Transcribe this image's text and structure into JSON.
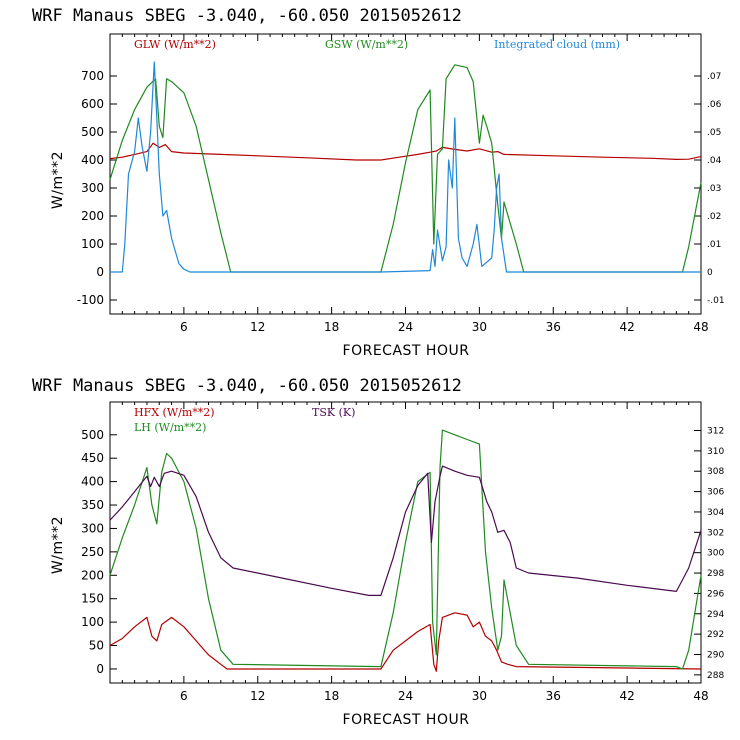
{
  "chart_data": [
    {
      "type": "line",
      "title": "WRF   Manaus SBEG   -3.040, -60.050  2015052612",
      "xlabel": "FORECAST HOUR",
      "ylabel": "W/m**2",
      "xlim": [
        0,
        48
      ],
      "ylim": [
        -150,
        850
      ],
      "xticks": [
        "6",
        "12",
        "18",
        "24",
        "30",
        "36",
        "42",
        "48"
      ],
      "yticks": [
        "-100",
        "0",
        "100",
        "200",
        "300",
        "400",
        "500",
        "600",
        "700"
      ],
      "y2lim": [
        -0.015,
        0.085
      ],
      "y2ticks": [
        "-.01",
        "0",
        ".01",
        ".02",
        ".03",
        ".04",
        ".05",
        ".06",
        ".07"
      ],
      "colors": {
        "glw": "#b40000",
        "gsw": "#208a20",
        "cloud": "#1f88d8"
      },
      "series": [
        {
          "name": "GLW (W/m**2)",
          "axis": "left",
          "color": "#b40000",
          "points": [
            [
              0,
              405
            ],
            [
              1,
              410
            ],
            [
              2,
              420
            ],
            [
              3,
              430
            ],
            [
              3.5,
              460
            ],
            [
              4,
              445
            ],
            [
              4.5,
              455
            ],
            [
              5,
              430
            ],
            [
              6,
              425
            ],
            [
              9,
              420
            ],
            [
              12,
              415
            ],
            [
              16,
              408
            ],
            [
              20,
              400
            ],
            [
              22,
              400
            ],
            [
              23.5,
              410
            ],
            [
              25,
              420
            ],
            [
              26,
              428
            ],
            [
              26.5,
              432
            ],
            [
              27,
              445
            ],
            [
              28,
              438
            ],
            [
              29,
              432
            ],
            [
              30,
              440
            ],
            [
              31,
              428
            ],
            [
              31.5,
              430
            ],
            [
              32,
              420
            ],
            [
              36,
              415
            ],
            [
              40,
              410
            ],
            [
              44,
              406
            ],
            [
              46,
              402
            ],
            [
              47,
              403
            ],
            [
              48,
              412
            ]
          ]
        },
        {
          "name": "GSW (W/m**2)",
          "axis": "left",
          "color": "#208a20",
          "points": [
            [
              0,
              330
            ],
            [
              1,
              470
            ],
            [
              2,
              580
            ],
            [
              3,
              660
            ],
            [
              3.7,
              690
            ],
            [
              4,
              520
            ],
            [
              4.3,
              480
            ],
            [
              4.6,
              690
            ],
            [
              5,
              680
            ],
            [
              6,
              640
            ],
            [
              7,
              520
            ],
            [
              8,
              330
            ],
            [
              9,
              140
            ],
            [
              9.8,
              0
            ],
            [
              22,
              0
            ],
            [
              23,
              170
            ],
            [
              24,
              390
            ],
            [
              25,
              580
            ],
            [
              26,
              650
            ],
            [
              26.3,
              100
            ],
            [
              26.6,
              420
            ],
            [
              27,
              440
            ],
            [
              27.3,
              690
            ],
            [
              28,
              740
            ],
            [
              29,
              730
            ],
            [
              29.5,
              680
            ],
            [
              30,
              460
            ],
            [
              30.3,
              560
            ],
            [
              30.6,
              520
            ],
            [
              31,
              460
            ],
            [
              31.5,
              240
            ],
            [
              31.8,
              120
            ],
            [
              32,
              250
            ],
            [
              33,
              100
            ],
            [
              33.6,
              0
            ],
            [
              46.5,
              0
            ],
            [
              47,
              90
            ],
            [
              48,
              320
            ]
          ]
        },
        {
          "name": "Integrated cloud (mm)",
          "axis": "right",
          "color": "#1f88d8",
          "points": [
            [
              0,
              0
            ],
            [
              1,
              0
            ],
            [
              1.2,
              0.01
            ],
            [
              1.5,
              0.035
            ],
            [
              2,
              0.043
            ],
            [
              2.3,
              0.055
            ],
            [
              2.6,
              0.045
            ],
            [
              3,
              0.036
            ],
            [
              3.3,
              0.05
            ],
            [
              3.6,
              0.075
            ],
            [
              4,
              0.035
            ],
            [
              4.3,
              0.02
            ],
            [
              4.6,
              0.022
            ],
            [
              5,
              0.012
            ],
            [
              5.6,
              0.003
            ],
            [
              6,
              0.001
            ],
            [
              6.5,
              0
            ],
            [
              22,
              0
            ],
            [
              26,
              0.0005
            ],
            [
              26.2,
              0.008
            ],
            [
              26.4,
              0.002
            ],
            [
              26.6,
              0.015
            ],
            [
              27,
              0.004
            ],
            [
              27.3,
              0.009
            ],
            [
              27.5,
              0.04
            ],
            [
              27.8,
              0.03
            ],
            [
              28,
              0.055
            ],
            [
              28.3,
              0.012
            ],
            [
              28.6,
              0.005
            ],
            [
              29,
              0.002
            ],
            [
              29.5,
              0.01
            ],
            [
              29.8,
              0.017
            ],
            [
              30.2,
              0.002
            ],
            [
              31,
              0.005
            ],
            [
              31.2,
              0.015
            ],
            [
              31.4,
              0.03
            ],
            [
              31.6,
              0.035
            ],
            [
              31.8,
              0.012
            ],
            [
              32.2,
              0
            ],
            [
              48,
              0
            ]
          ]
        }
      ]
    },
    {
      "type": "line",
      "title": "WRF   Manaus SBEG   -3.040, -60.050  2015052612",
      "xlabel": "FORECAST HOUR",
      "ylabel": "W/m**2",
      "xlim": [
        0,
        48
      ],
      "ylim": [
        -30,
        570
      ],
      "xticks": [
        "6",
        "12",
        "18",
        "24",
        "30",
        "36",
        "42",
        "48"
      ],
      "yticks": [
        "0",
        "50",
        "100",
        "150",
        "200",
        "250",
        "300",
        "350",
        "400",
        "450",
        "500"
      ],
      "y2lim": [
        287.2,
        314.8
      ],
      "y2ticks": [
        "288",
        "290",
        "292",
        "294",
        "296",
        "298",
        "300",
        "302",
        "304",
        "306",
        "308",
        "310",
        "312"
      ],
      "colors": {
        "hfx": "#b40000",
        "lh": "#208a20",
        "tsk": "#4a0a50"
      },
      "series": [
        {
          "name": "HFX (W/m**2)",
          "axis": "left",
          "color": "#b40000",
          "points": [
            [
              0,
              50
            ],
            [
              1,
              65
            ],
            [
              2,
              90
            ],
            [
              3,
              110
            ],
            [
              3.4,
              70
            ],
            [
              3.8,
              60
            ],
            [
              4.2,
              95
            ],
            [
              5,
              110
            ],
            [
              6,
              90
            ],
            [
              7,
              60
            ],
            [
              8,
              30
            ],
            [
              9,
              10
            ],
            [
              9.5,
              0
            ],
            [
              22,
              0
            ],
            [
              23,
              40
            ],
            [
              24,
              60
            ],
            [
              25,
              80
            ],
            [
              26,
              95
            ],
            [
              26.3,
              10
            ],
            [
              26.5,
              -5
            ],
            [
              26.7,
              60
            ],
            [
              27,
              110
            ],
            [
              28,
              120
            ],
            [
              29,
              115
            ],
            [
              29.5,
              90
            ],
            [
              30,
              100
            ],
            [
              30.5,
              70
            ],
            [
              31,
              60
            ],
            [
              31.4,
              40
            ],
            [
              31.8,
              15
            ],
            [
              32.3,
              10
            ],
            [
              33,
              5
            ],
            [
              48,
              0
            ]
          ]
        },
        {
          "name": "LH (W/m**2)",
          "axis": "left",
          "color": "#208a20",
          "points": [
            [
              0,
              200
            ],
            [
              1,
              280
            ],
            [
              2,
              350
            ],
            [
              3,
              430
            ],
            [
              3.4,
              350
            ],
            [
              3.8,
              310
            ],
            [
              4.2,
              420
            ],
            [
              4.6,
              460
            ],
            [
              5,
              450
            ],
            [
              6,
              400
            ],
            [
              7,
              300
            ],
            [
              8,
              150
            ],
            [
              9,
              40
            ],
            [
              10,
              10
            ],
            [
              22,
              5
            ],
            [
              23,
              120
            ],
            [
              24,
              270
            ],
            [
              25,
              400
            ],
            [
              26,
              420
            ],
            [
              26.2,
              100
            ],
            [
              26.5,
              30
            ],
            [
              26.8,
              430
            ],
            [
              27,
              510
            ],
            [
              28,
              500
            ],
            [
              29,
              490
            ],
            [
              30,
              480
            ],
            [
              30.5,
              250
            ],
            [
              31,
              130
            ],
            [
              31.5,
              40
            ],
            [
              31.8,
              70
            ],
            [
              32,
              190
            ],
            [
              33,
              50
            ],
            [
              34,
              10
            ],
            [
              46,
              5
            ],
            [
              46.5,
              0
            ],
            [
              47,
              40
            ],
            [
              48,
              200
            ]
          ]
        },
        {
          "name": "TSK (K)",
          "axis": "right",
          "color": "#4a0a50",
          "points": [
            [
              0,
              303.2
            ],
            [
              1,
              304.5
            ],
            [
              2,
              306
            ],
            [
              3,
              307.5
            ],
            [
              3.3,
              306.5
            ],
            [
              3.6,
              307.4
            ],
            [
              4,
              306.5
            ],
            [
              4.4,
              307.8
            ],
            [
              5,
              308
            ],
            [
              6,
              307.6
            ],
            [
              7,
              305.5
            ],
            [
              8,
              302
            ],
            [
              9,
              299.5
            ],
            [
              10,
              298.5
            ],
            [
              14,
              297.5
            ],
            [
              18,
              296.5
            ],
            [
              21,
              295.8
            ],
            [
              22,
              295.8
            ],
            [
              23,
              299.5
            ],
            [
              24,
              304
            ],
            [
              25,
              306.6
            ],
            [
              25.8,
              307.8
            ],
            [
              26.1,
              301
            ],
            [
              26.4,
              305
            ],
            [
              26.8,
              307.5
            ],
            [
              27,
              308.5
            ],
            [
              28,
              308
            ],
            [
              29,
              307.6
            ],
            [
              30,
              307.4
            ],
            [
              30.6,
              305
            ],
            [
              31,
              304
            ],
            [
              31.5,
              302
            ],
            [
              32,
              302.2
            ],
            [
              32.5,
              301
            ],
            [
              33,
              298.5
            ],
            [
              34,
              298
            ],
            [
              38,
              297.5
            ],
            [
              42,
              296.8
            ],
            [
              46,
              296.2
            ],
            [
              47,
              298.5
            ],
            [
              48,
              302.2
            ]
          ]
        }
      ]
    }
  ],
  "top_chart": {
    "title": "WRF   Manaus SBEG   -3.040, -60.050  2015052612",
    "ylabel": "W/m**2",
    "xlabel": "FORECAST HOUR",
    "legend": {
      "glw": "GLW (W/m**2)",
      "gsw": "GSW (W/m**2)",
      "cloud": "Integrated cloud (mm)"
    }
  },
  "bottom_chart": {
    "title": "WRF   Manaus SBEG   -3.040, -60.050  2015052612",
    "ylabel": "W/m**2",
    "xlabel": "FORECAST HOUR",
    "legend": {
      "hfx": "HFX (W/m**2)",
      "lh": "LH (W/m**2)",
      "tsk": "TSK (K)"
    }
  }
}
